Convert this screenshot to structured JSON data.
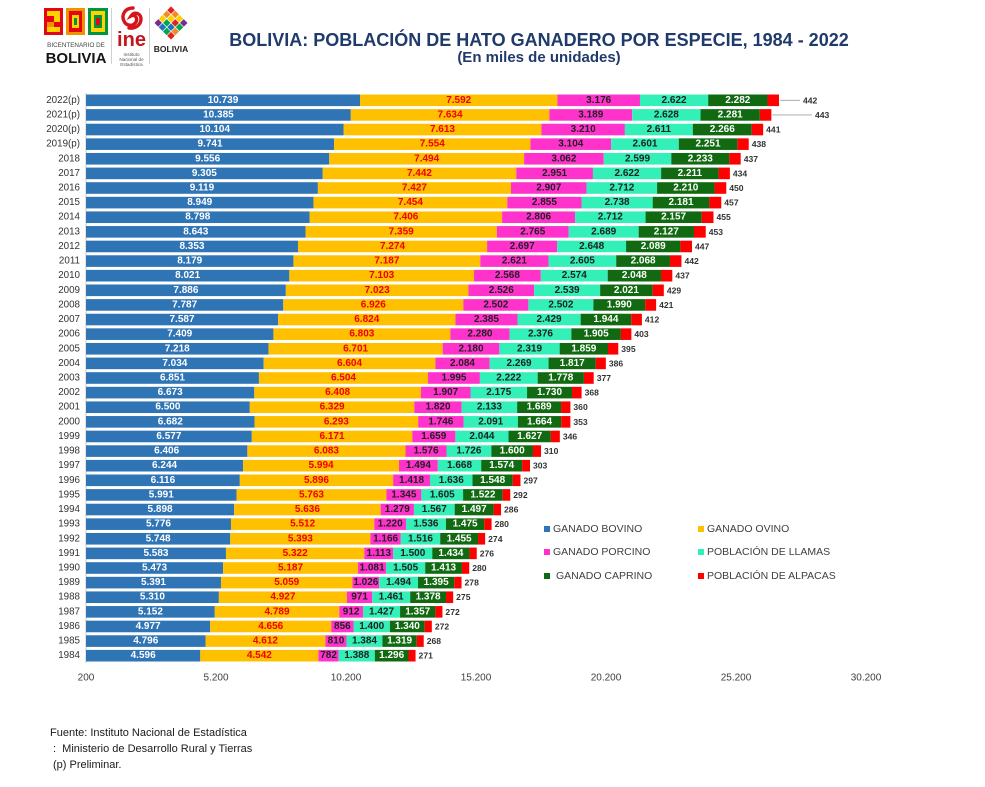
{
  "logos": {
    "bicentenario": {
      "line1": "BICENTENARIO DE",
      "line2": "BOLIVIA"
    },
    "ine": {
      "name": "ine",
      "full_name": "Instituto Nacional de Estadística"
    },
    "estado": {
      "name": "BOLIVIA"
    }
  },
  "chart_data": {
    "type": "bar",
    "orientation": "horizontal",
    "stacked": true,
    "title": "BOLIVIA: POBLACIÓN DE HATO GANADERO POR ESPECIE, 1984 - 2022",
    "subtitle": "(En miles de unidades)",
    "xlim": [
      200,
      30200
    ],
    "xticks": [
      200,
      5200,
      10200,
      15200,
      20200,
      25200,
      30200
    ],
    "grid": false,
    "legend_position": "bottom-right",
    "categories": [
      "2022(p)",
      "2021(p)",
      "2020(p)",
      "2019(p)",
      "2018",
      "2017",
      "2016",
      "2015",
      "2014",
      "2013",
      "2012",
      "2011",
      "2010",
      "2009",
      "2008",
      "2007",
      "2006",
      "2005",
      "2004",
      "2003",
      "2002",
      "2001",
      "2000",
      "1999",
      "1998",
      "1997",
      "1996",
      "1995",
      "1994",
      "1993",
      "1992",
      "1991",
      "1990",
      "1989",
      "1988",
      "1987",
      "1986",
      "1985",
      "1984"
    ],
    "series": [
      {
        "name": "GANADO BOVINO",
        "color": "#2F74B5",
        "label_color": "#FFFFFF",
        "values": [
          10739,
          10385,
          10104,
          9741,
          9556,
          9305,
          9119,
          8949,
          8798,
          8643,
          8353,
          8179,
          8021,
          7886,
          7787,
          7587,
          7409,
          7218,
          7034,
          6851,
          6673,
          6500,
          6682,
          6577,
          6406,
          6244,
          6116,
          5991,
          5898,
          5776,
          5748,
          5583,
          5473,
          5391,
          5310,
          5152,
          4977,
          4796,
          4596
        ]
      },
      {
        "name": "GANADO OVINO",
        "color": "#FFC000",
        "label_color": "#F00000",
        "values": [
          7592,
          7634,
          7613,
          7554,
          7494,
          7442,
          7427,
          7454,
          7406,
          7359,
          7274,
          7187,
          7103,
          7023,
          6926,
          6824,
          6803,
          6701,
          6604,
          6504,
          6408,
          6329,
          6293,
          6171,
          6083,
          5994,
          5896,
          5763,
          5636,
          5512,
          5393,
          5322,
          5187,
          5059,
          4927,
          4789,
          4656,
          4612,
          4542
        ]
      },
      {
        "name": "GANADO PORCINO",
        "color": "#FF33CC",
        "label_color": "#1F1F1F",
        "values": [
          3176,
          3189,
          3210,
          3104,
          3062,
          2951,
          2907,
          2855,
          2806,
          2765,
          2697,
          2621,
          2568,
          2526,
          2502,
          2385,
          2280,
          2180,
          2084,
          1995,
          1907,
          1820,
          1746,
          1659,
          1576,
          1494,
          1418,
          1345,
          1279,
          1220,
          1166,
          1113,
          1081,
          1026,
          971,
          912,
          856,
          810,
          782
        ]
      },
      {
        "name": "POBLACIÓN DE LLAMAS",
        "color": "#33F0B8",
        "label_color": "#1F1F1F",
        "values": [
          2622,
          2628,
          2611,
          2601,
          2599,
          2622,
          2712,
          2738,
          2712,
          2689,
          2648,
          2605,
          2574,
          2539,
          2502,
          2429,
          2376,
          2319,
          2269,
          2222,
          2175,
          2133,
          2091,
          2044,
          1726,
          1668,
          1636,
          1605,
          1567,
          1536,
          1516,
          1500,
          1505,
          1494,
          1461,
          1427,
          1400,
          1384,
          1388
        ]
      },
      {
        "name": "GANADO CAPRINO",
        "color": "#116A11",
        "label_color": "#FFFFFF",
        "values": [
          2282,
          2281,
          2266,
          2251,
          2233,
          2211,
          2210,
          2181,
          2157,
          2127,
          2089,
          2068,
          2048,
          2021,
          1990,
          1944,
          1905,
          1859,
          1817,
          1778,
          1730,
          1689,
          1664,
          1627,
          1600,
          1574,
          1548,
          1522,
          1497,
          1475,
          1455,
          1434,
          1413,
          1395,
          1378,
          1357,
          1340,
          1319,
          1296
        ]
      },
      {
        "name": "POBLACIÓN DE ALPACAS",
        "color": "#FF0000",
        "label_color": "#333333",
        "values": [
          442,
          443,
          441,
          438,
          437,
          434,
          450,
          457,
          455,
          453,
          447,
          442,
          437,
          429,
          421,
          412,
          403,
          395,
          386,
          377,
          368,
          360,
          353,
          346,
          310,
          303,
          297,
          292,
          286,
          280,
          274,
          276,
          280,
          278,
          275,
          272,
          272,
          268,
          271
        ]
      }
    ]
  },
  "footer": {
    "source": "Fuente: Instituto Nacional de Estadística",
    "source_2": ":  Ministerio de Desarrollo Rural y Tierras",
    "note": "(p) Preliminar."
  }
}
